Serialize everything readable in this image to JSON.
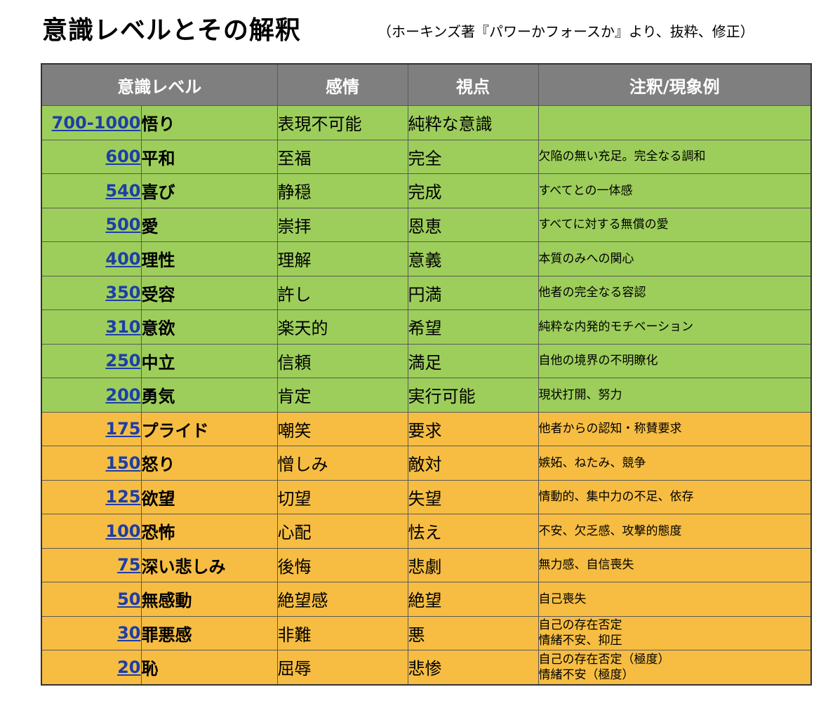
{
  "title": "意識レベルとその解釈",
  "subtitle": "（ホーキンズ著『パワーかフォースか』より、抜粋、修正）",
  "columns": {
    "level": "意識レベル",
    "emotion": "感情",
    "view": "視点",
    "note": "注釈/現象例"
  },
  "colors": {
    "header": "#7f7f7f",
    "green": "#9dce5b",
    "orange": "#f6bd42",
    "link": "#1d3ea8"
  },
  "rows": [
    {
      "level": "700-1000",
      "name": "悟り",
      "emotion": "表現不可能",
      "view": "純粋な意識",
      "note1": "",
      "note2": ""
    },
    {
      "level": "600",
      "name": "平和",
      "emotion": "至福",
      "view": "完全",
      "note1": "欠陥の無い充足。完全なる調和",
      "note2": ""
    },
    {
      "level": "540",
      "name": "喜び",
      "emotion": "静穏",
      "view": "完成",
      "note1": "すべてとの一体感",
      "note2": ""
    },
    {
      "level": "500",
      "name": "愛",
      "emotion": "崇拝",
      "view": "恩恵",
      "note1": "すべてに対する無償の愛",
      "note2": ""
    },
    {
      "level": "400",
      "name": "理性",
      "emotion": "理解",
      "view": "意義",
      "note1": "本質のみへの関心",
      "note2": ""
    },
    {
      "level": "350",
      "name": "受容",
      "emotion": "許し",
      "view": "円満",
      "note1": "他者の完全なる容認",
      "note2": ""
    },
    {
      "level": "310",
      "name": "意欲",
      "emotion": "楽天的",
      "view": "希望",
      "note1": "純粋な内発的モチベーション",
      "note2": ""
    },
    {
      "level": "250",
      "name": "中立",
      "emotion": "信頼",
      "view": "満足",
      "note1": "自他の境界の不明瞭化",
      "note2": ""
    },
    {
      "level": "200",
      "name": "勇気",
      "emotion": "肯定",
      "view": "実行可能",
      "note1": "現状打開、努力",
      "note2": ""
    },
    {
      "level": "175",
      "name": "プライド",
      "emotion": "嘲笑",
      "view": "要求",
      "note1": "他者からの認知・称賛要求",
      "note2": ""
    },
    {
      "level": "150",
      "name": "怒り",
      "emotion": "憎しみ",
      "view": "敵対",
      "note1": "嫉妬、ねたみ、競争",
      "note2": ""
    },
    {
      "level": "125",
      "name": "欲望",
      "emotion": "切望",
      "view": "失望",
      "note1": "情動的、集中力の不足、依存",
      "note2": ""
    },
    {
      "level": "100",
      "name": "恐怖",
      "emotion": "心配",
      "view": "怯え",
      "note1": "不安、欠乏感、攻撃的態度",
      "note2": ""
    },
    {
      "level": "75",
      "name": "深い悲しみ",
      "emotion": "後悔",
      "view": "悲劇",
      "note1": "無力感、自信喪失",
      "note2": ""
    },
    {
      "level": "50",
      "name": "無感動",
      "emotion": "絶望感",
      "view": "絶望",
      "note1": "自己喪失",
      "note2": ""
    },
    {
      "level": "30",
      "name": "罪悪感",
      "emotion": "非難",
      "view": "悪",
      "note1": "自己の存在否定",
      "note2": "情緒不安、抑圧"
    },
    {
      "level": "20",
      "name": "恥",
      "emotion": "屈辱",
      "view": "悲惨",
      "note1": "自己の存在否定（極度）",
      "note2": "情緒不安（極度）"
    }
  ]
}
